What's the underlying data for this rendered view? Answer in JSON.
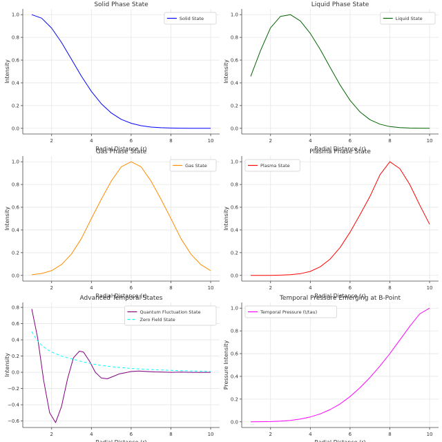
{
  "figure_title": "",
  "chart_data": [
    {
      "type": "line",
      "title": "Solid Phase State",
      "xlabel": "Radial Distance (r)",
      "ylabel": "Intensity",
      "xlim": [
        0.55,
        10.45
      ],
      "ylim": [
        -0.05,
        1.05
      ],
      "xticks": [
        2,
        4,
        6,
        8,
        10
      ],
      "yticks": [
        0.0,
        0.2,
        0.4,
        0.6,
        0.8,
        1.0
      ],
      "ytick_labels": [
        "0.0",
        "0.2",
        "0.4",
        "0.6",
        "0.8",
        "1.0"
      ],
      "grid": true,
      "legend_position": "top-right",
      "series": [
        {
          "name": "Solid State",
          "color": "#0000ff",
          "dash": "",
          "x": [
            1.0,
            1.5,
            2.0,
            2.5,
            3.0,
            3.5,
            4.0,
            4.5,
            5.0,
            5.5,
            6.0,
            6.5,
            7.0,
            7.5,
            8.0,
            8.5,
            9.0,
            9.5,
            10.0
          ],
          "y": [
            1.0,
            0.969,
            0.882,
            0.755,
            0.607,
            0.458,
            0.325,
            0.216,
            0.135,
            0.079,
            0.044,
            0.023,
            0.011,
            0.005,
            0.002,
            0.001,
            0.0,
            0.0,
            0.0
          ]
        }
      ]
    },
    {
      "type": "line",
      "title": "Liquid Phase State",
      "xlabel": "Radial Distance (r)",
      "ylabel": "Intensity",
      "xlim": [
        0.55,
        10.45
      ],
      "ylim": [
        -0.05,
        1.05
      ],
      "xticks": [
        2,
        4,
        6,
        8,
        10
      ],
      "yticks": [
        0.0,
        0.2,
        0.4,
        0.6,
        0.8,
        1.0
      ],
      "ytick_labels": [
        "0.0",
        "0.2",
        "0.4",
        "0.6",
        "0.8",
        "1.0"
      ],
      "grid": true,
      "legend_position": "top-right",
      "series": [
        {
          "name": "Liquid State",
          "color": "#006400",
          "dash": "",
          "x": [
            1.0,
            1.5,
            2.0,
            2.5,
            3.0,
            3.5,
            4.0,
            4.5,
            5.0,
            5.5,
            6.0,
            6.5,
            7.0,
            7.5,
            8.0,
            8.5,
            9.0,
            9.5,
            10.0
          ],
          "y": [
            0.456,
            0.685,
            0.884,
            0.985,
            1.0,
            0.945,
            0.835,
            0.694,
            0.535,
            0.38,
            0.246,
            0.144,
            0.076,
            0.036,
            0.015,
            0.006,
            0.002,
            0.001,
            0.0
          ]
        }
      ]
    },
    {
      "type": "line",
      "title": "Gas Phase State",
      "xlabel": "Radial Distance (r)",
      "ylabel": "Intensity",
      "xlim": [
        0.55,
        10.45
      ],
      "ylim": [
        -0.05,
        1.05
      ],
      "xticks": [
        2,
        4,
        6,
        8,
        10
      ],
      "yticks": [
        0.0,
        0.2,
        0.4,
        0.6,
        0.8,
        1.0
      ],
      "ytick_labels": [
        "0.0",
        "0.2",
        "0.4",
        "0.6",
        "0.8",
        "1.0"
      ],
      "grid": true,
      "legend_position": "top-right",
      "series": [
        {
          "name": "Gas State",
          "color": "#ff8c00",
          "dash": "",
          "x": [
            1.0,
            1.5,
            2.0,
            2.5,
            3.0,
            3.5,
            4.0,
            4.5,
            5.0,
            5.5,
            6.0,
            6.5,
            7.0,
            7.5,
            8.0,
            8.5,
            9.0,
            9.5,
            10.0
          ],
          "y": [
            0.005,
            0.017,
            0.042,
            0.095,
            0.188,
            0.325,
            0.5,
            0.67,
            0.83,
            0.955,
            1.0,
            0.955,
            0.83,
            0.67,
            0.5,
            0.325,
            0.188,
            0.095,
            0.042
          ]
        }
      ]
    },
    {
      "type": "line",
      "title": "Plasma Phase State",
      "xlabel": "Radial Distance (r)",
      "ylabel": "Intensity",
      "xlim": [
        0.55,
        10.45
      ],
      "ylim": [
        -0.05,
        1.05
      ],
      "xticks": [
        2,
        4,
        6,
        8,
        10
      ],
      "yticks": [
        0.0,
        0.2,
        0.4,
        0.6,
        0.8,
        1.0
      ],
      "ytick_labels": [
        "0.0",
        "0.2",
        "0.4",
        "0.6",
        "0.8",
        "1.0"
      ],
      "grid": true,
      "legend_position": "top-left",
      "series": [
        {
          "name": "Plasma State",
          "color": "#ff0000",
          "dash": "",
          "x": [
            1.0,
            1.5,
            2.0,
            2.5,
            3.0,
            3.5,
            4.0,
            4.5,
            5.0,
            5.5,
            6.0,
            6.5,
            7.0,
            7.5,
            8.0,
            8.5,
            9.0,
            9.5,
            10.0
          ],
          "y": [
            0.0,
            0.0,
            0.0,
            0.002,
            0.006,
            0.015,
            0.035,
            0.076,
            0.144,
            0.246,
            0.38,
            0.535,
            0.695,
            0.885,
            1.0,
            0.94,
            0.8,
            0.62,
            0.45
          ]
        }
      ]
    },
    {
      "type": "line",
      "title": "Advanced Temporal States",
      "xlabel": "Radial Distance (r)",
      "ylabel": "Intensity",
      "xlim": [
        0.55,
        10.45
      ],
      "ylim": [
        -0.68,
        0.86
      ],
      "xticks": [
        2,
        4,
        6,
        8,
        10
      ],
      "yticks": [
        -0.6,
        -0.4,
        -0.2,
        0.0,
        0.2,
        0.4,
        0.6,
        0.8
      ],
      "ytick_labels": [
        "−0.6",
        "−0.4",
        "−0.2",
        "0.0",
        "0.2",
        "0.4",
        "0.6",
        "0.8"
      ],
      "grid": true,
      "legend_position": "top-right",
      "series": [
        {
          "name": "Quantum Fluctuation State",
          "color": "#800080",
          "dash": "",
          "x": [
            1.0,
            1.3,
            1.6,
            1.9,
            2.2,
            2.5,
            2.8,
            3.1,
            3.4,
            3.6,
            3.9,
            4.2,
            4.5,
            4.8,
            5.1,
            5.4,
            5.7,
            6.0,
            6.4,
            6.8,
            7.2,
            7.6,
            8.0,
            8.5,
            9.0,
            9.5,
            10.0
          ],
          "y": [
            0.78,
            0.42,
            -0.1,
            -0.5,
            -0.62,
            -0.42,
            -0.08,
            0.18,
            0.26,
            0.25,
            0.14,
            0.0,
            -0.07,
            -0.08,
            -0.05,
            -0.02,
            -0.005,
            0.01,
            0.015,
            0.01,
            0.005,
            0.002,
            0.0,
            0.002,
            0.0,
            -0.002,
            0.0
          ]
        },
        {
          "name": "Zero Field State",
          "color": "#00ffff",
          "dash": "4,3",
          "x": [
            1.0,
            1.25,
            1.5,
            1.75,
            2.0,
            2.5,
            3.0,
            3.5,
            4.0,
            4.5,
            5.0,
            5.5,
            6.0,
            6.5,
            7.0,
            7.5,
            8.0,
            8.5,
            9.0,
            9.5,
            10.0
          ],
          "y": [
            0.5,
            0.4,
            0.333,
            0.286,
            0.25,
            0.2,
            0.167,
            0.133,
            0.105,
            0.085,
            0.07,
            0.058,
            0.048,
            0.04,
            0.034,
            0.028,
            0.024,
            0.02,
            0.016,
            0.013,
            0.01
          ]
        }
      ]
    },
    {
      "type": "line",
      "title": "Temporal Pressure Emerging at B-Point",
      "xlabel": "Radial Distance (r)",
      "ylabel": "Pressure Intensity",
      "xlim": [
        0.55,
        10.45
      ],
      "ylim": [
        -0.05,
        1.05
      ],
      "xticks": [
        2,
        4,
        6,
        8,
        10
      ],
      "yticks": [
        0.0,
        0.2,
        0.4,
        0.6,
        0.8,
        1.0
      ],
      "ytick_labels": [
        "0.0",
        "0.2",
        "0.4",
        "0.6",
        "0.8",
        "1.0"
      ],
      "grid": true,
      "legend_position": "top-left",
      "series": [
        {
          "name": "Temporal Pressure (t/tau)",
          "color": "#ff00ff",
          "dash": "",
          "x": [
            1.0,
            1.5,
            2.0,
            2.5,
            3.0,
            3.5,
            4.0,
            4.5,
            5.0,
            5.5,
            6.0,
            6.5,
            7.0,
            7.5,
            8.0,
            8.5,
            9.0,
            9.5,
            10.0
          ],
          "y": [
            0.0,
            0.001,
            0.002,
            0.006,
            0.012,
            0.024,
            0.043,
            0.07,
            0.108,
            0.157,
            0.222,
            0.3,
            0.39,
            0.49,
            0.6,
            0.72,
            0.84,
            0.95,
            1.0
          ]
        }
      ]
    }
  ]
}
